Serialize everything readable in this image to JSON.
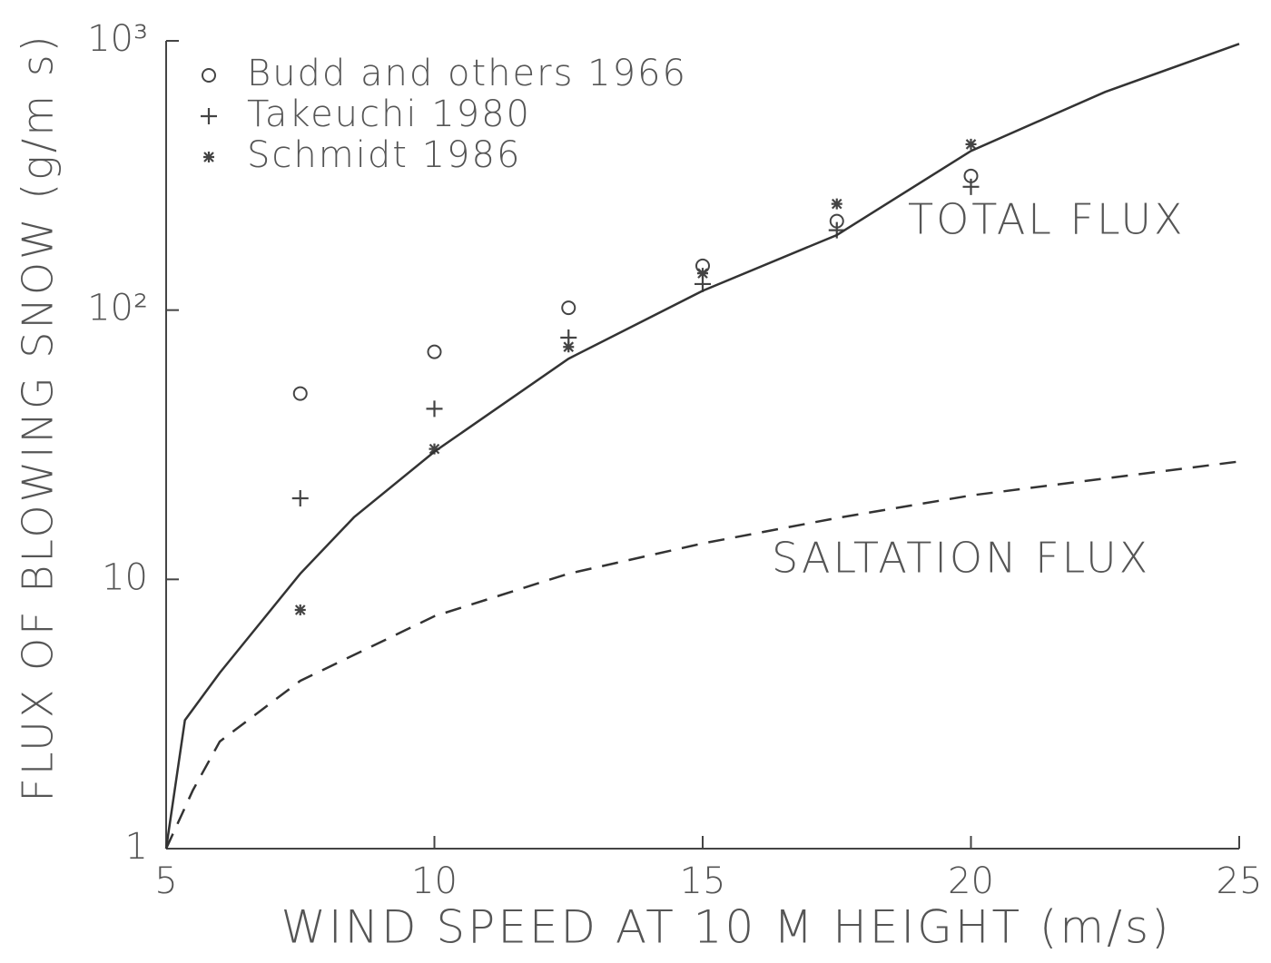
{
  "chart_data": {
    "type": "line",
    "x_label": "WIND SPEED AT 10 M HEIGHT (m/s)",
    "y_label": "FLUX OF BLOWING SNOW (g/m s)",
    "log_y": true,
    "legend": "top-left",
    "xlim": [
      5,
      25
    ],
    "xticks": [
      5,
      10,
      15,
      20,
      25
    ],
    "ylim": [
      1,
      1000
    ],
    "yticks": [
      1,
      10,
      {
        "value": 100,
        "label": "10²"
      },
      {
        "value": 1000,
        "label": "10³"
      }
    ],
    "series": [
      {
        "name": "Budd and others 1966",
        "style": "circle",
        "color": "#444444",
        "x": [
          7.5,
          10,
          12.5,
          15,
          17.5,
          20
        ],
        "values": [
          49,
          70,
          102,
          146,
          214,
          315
        ]
      },
      {
        "name": "Takeuchi 1980",
        "style": "plus",
        "color": "#444444",
        "x": [
          7.5,
          10,
          12.5,
          15,
          17.5,
          20
        ],
        "values": [
          20,
          43,
          79,
          125,
          198,
          287
        ]
      },
      {
        "name": "Schmidt 1986",
        "style": "star",
        "color": "#444444",
        "x": [
          7.5,
          10,
          12.5,
          15,
          17.5,
          20
        ],
        "values": [
          7.7,
          30.5,
          73,
          137,
          248,
          413
        ]
      },
      {
        "name": "TOTAL FLUX",
        "style": "solid",
        "color": "#333333",
        "x": [
          5,
          5.35,
          6,
          7.5,
          8.5,
          10,
          12.5,
          15,
          17.5,
          20,
          22.5,
          25
        ],
        "values": [
          1,
          3,
          4.5,
          10.5,
          17,
          29.8,
          66,
          118,
          190,
          390,
          646,
          975
        ]
      },
      {
        "name": "SALTATION FLUX",
        "style": "dashed",
        "color": "#333333",
        "x": [
          5,
          5.5,
          6,
          7.5,
          10,
          12.5,
          15,
          17.5,
          20,
          25
        ],
        "values": [
          1,
          1.65,
          2.5,
          4.2,
          7.3,
          10.5,
          13.6,
          16.9,
          20.5,
          27.4
        ]
      }
    ]
  }
}
